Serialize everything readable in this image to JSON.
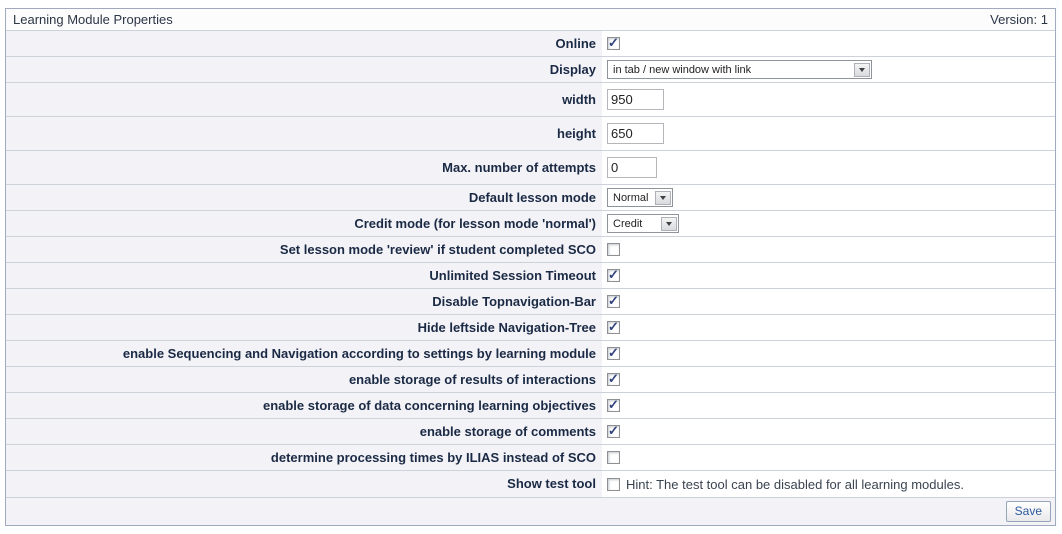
{
  "header": {
    "title": "Learning Module Properties",
    "version": "Version: 1"
  },
  "rows": [
    {
      "name": "online",
      "label": "Online",
      "type": "checkbox",
      "checked": true
    },
    {
      "name": "display",
      "label": "Display",
      "type": "select",
      "value": "in tab / new window with link",
      "control_width": 265
    },
    {
      "name": "width",
      "label": "width",
      "type": "text",
      "value": "950",
      "control_width": 57
    },
    {
      "name": "height",
      "label": "height",
      "type": "text",
      "value": "650",
      "control_width": 57
    },
    {
      "name": "max-attempts",
      "label": "Max. number of attempts",
      "type": "text",
      "value": "0",
      "control_width": 50
    },
    {
      "name": "default-lesson-mode",
      "label": "Default lesson mode",
      "type": "select",
      "value": "Normal",
      "control_width": 66
    },
    {
      "name": "credit-mode",
      "label": "Credit mode (for lesson mode 'normal')",
      "type": "select",
      "value": "Credit",
      "control_width": 72
    },
    {
      "name": "review-if-completed",
      "label": "Set lesson mode 'review' if student completed SCO",
      "type": "checkbox",
      "checked": false
    },
    {
      "name": "unlimited-session-timeout",
      "label": "Unlimited Session Timeout",
      "type": "checkbox",
      "checked": true
    },
    {
      "name": "disable-topnavigation-bar",
      "label": "Disable Topnavigation-Bar",
      "type": "checkbox",
      "checked": true
    },
    {
      "name": "hide-leftside-navigation-tree",
      "label": "Hide leftside Navigation-Tree",
      "type": "checkbox",
      "checked": true
    },
    {
      "name": "enable-sequencing-navigation",
      "label": "enable Sequencing and Navigation according to settings by learning module",
      "type": "checkbox",
      "checked": true
    },
    {
      "name": "storage-results-interactions",
      "label": "enable storage of results of interactions",
      "type": "checkbox",
      "checked": true
    },
    {
      "name": "storage-learning-objectives",
      "label": "enable storage of data concerning learning objectives",
      "type": "checkbox",
      "checked": true
    },
    {
      "name": "storage-comments",
      "label": "enable storage of comments",
      "type": "checkbox",
      "checked": true
    },
    {
      "name": "processing-times-ilias",
      "label": "determine processing times by ILIAS instead of SCO",
      "type": "checkbox",
      "checked": false
    },
    {
      "name": "show-test-tool",
      "label": "Show test tool",
      "type": "checkbox",
      "checked": false,
      "hint": "Hint: The test tool can be disabled for all learning modules."
    }
  ],
  "footer": {
    "save_label": "Save"
  }
}
